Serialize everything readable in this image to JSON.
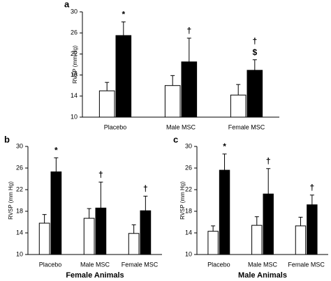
{
  "chart_data": [
    {
      "type": "bar",
      "panel": "a",
      "y_label": "RVSP (mm Hg)",
      "categories": [
        "Placebo",
        "Male MSC",
        "Female MSC"
      ],
      "series": [
        {
          "color": "#ffffff",
          "values": [
            15.0,
            16.0,
            14.2
          ],
          "errors": [
            1.6,
            1.9,
            2.0
          ]
        },
        {
          "color": "#000000",
          "values": [
            25.5,
            20.5,
            18.9
          ],
          "errors": [
            2.6,
            4.5,
            2.0
          ],
          "annotations": [
            [
              "*"
            ],
            [
              "†"
            ],
            [
              "†",
              "$"
            ]
          ]
        }
      ],
      "ylim": [
        10,
        30
      ],
      "yticks": [
        10,
        14,
        18,
        22,
        26,
        30
      ]
    },
    {
      "type": "bar",
      "panel": "b",
      "y_label": "RVSP (mm Hg)",
      "x_label": "Female Animals",
      "categories": [
        "Placebo",
        "Male MSC",
        "Female MSC"
      ],
      "series": [
        {
          "color": "#ffffff",
          "values": [
            15.8,
            16.7,
            13.9
          ],
          "errors": [
            1.6,
            1.8,
            1.6
          ]
        },
        {
          "color": "#000000",
          "values": [
            25.3,
            18.6,
            18.1
          ],
          "errors": [
            2.6,
            4.8,
            2.7
          ],
          "annotations": [
            [
              "*"
            ],
            [
              "†"
            ],
            [
              "†"
            ]
          ]
        }
      ],
      "ylim": [
        10,
        30
      ],
      "yticks": [
        10,
        14,
        18,
        22,
        26,
        30
      ]
    },
    {
      "type": "bar",
      "panel": "c",
      "y_label": "RVSP (mm Hg)",
      "x_label": "Male Animals",
      "categories": [
        "Placebo",
        "Male MSC",
        "Female MSC"
      ],
      "series": [
        {
          "color": "#ffffff",
          "values": [
            14.3,
            15.4,
            15.3
          ],
          "errors": [
            1.0,
            1.6,
            1.6
          ]
        },
        {
          "color": "#000000",
          "values": [
            25.6,
            21.2,
            19.2
          ],
          "errors": [
            3.0,
            4.7,
            1.8
          ],
          "annotations": [
            [
              "*"
            ],
            [
              "†"
            ],
            [
              "†"
            ]
          ]
        }
      ],
      "ylim": [
        10,
        30
      ],
      "yticks": [
        10,
        14,
        18,
        22,
        26,
        30
      ]
    }
  ]
}
